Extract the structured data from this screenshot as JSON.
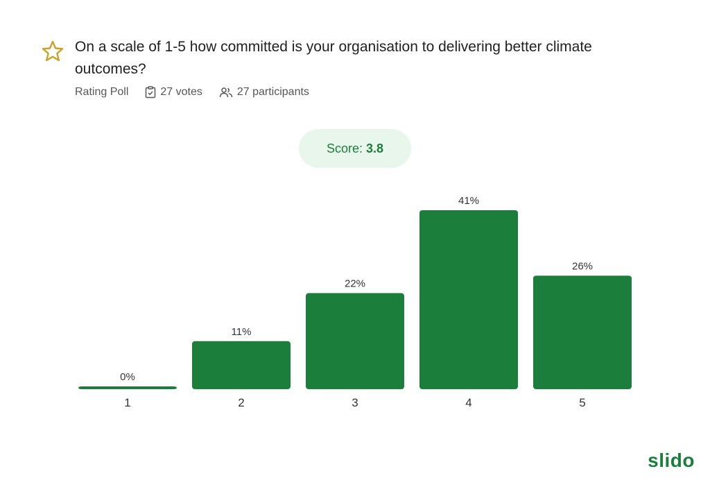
{
  "question": {
    "text": "On a scale of 1-5 how committed is your organisation to delivering better climate outcomes?",
    "type_label": "Rating Poll",
    "votes_label": "27 votes",
    "participants_label": "27 participants"
  },
  "score": {
    "label": "Score:",
    "value": "3.8"
  },
  "brand": {
    "name": "slido",
    "color": "#1b7f3b"
  },
  "colors": {
    "bar": "#1b7f3b",
    "pill_bg": "#e8f6ec",
    "accent_star": "#c9a227"
  },
  "icons": {
    "title": "star-icon",
    "votes": "clipboard-check-icon",
    "participants": "people-icon"
  },
  "chart_data": {
    "type": "bar",
    "categories": [
      "1",
      "2",
      "3",
      "4",
      "5"
    ],
    "values": [
      0,
      11,
      22,
      41,
      26
    ],
    "value_labels": [
      "0%",
      "11%",
      "22%",
      "41%",
      "26%"
    ],
    "unit": "%",
    "ylim": [
      0,
      41
    ],
    "grid": false,
    "legend": "none"
  }
}
